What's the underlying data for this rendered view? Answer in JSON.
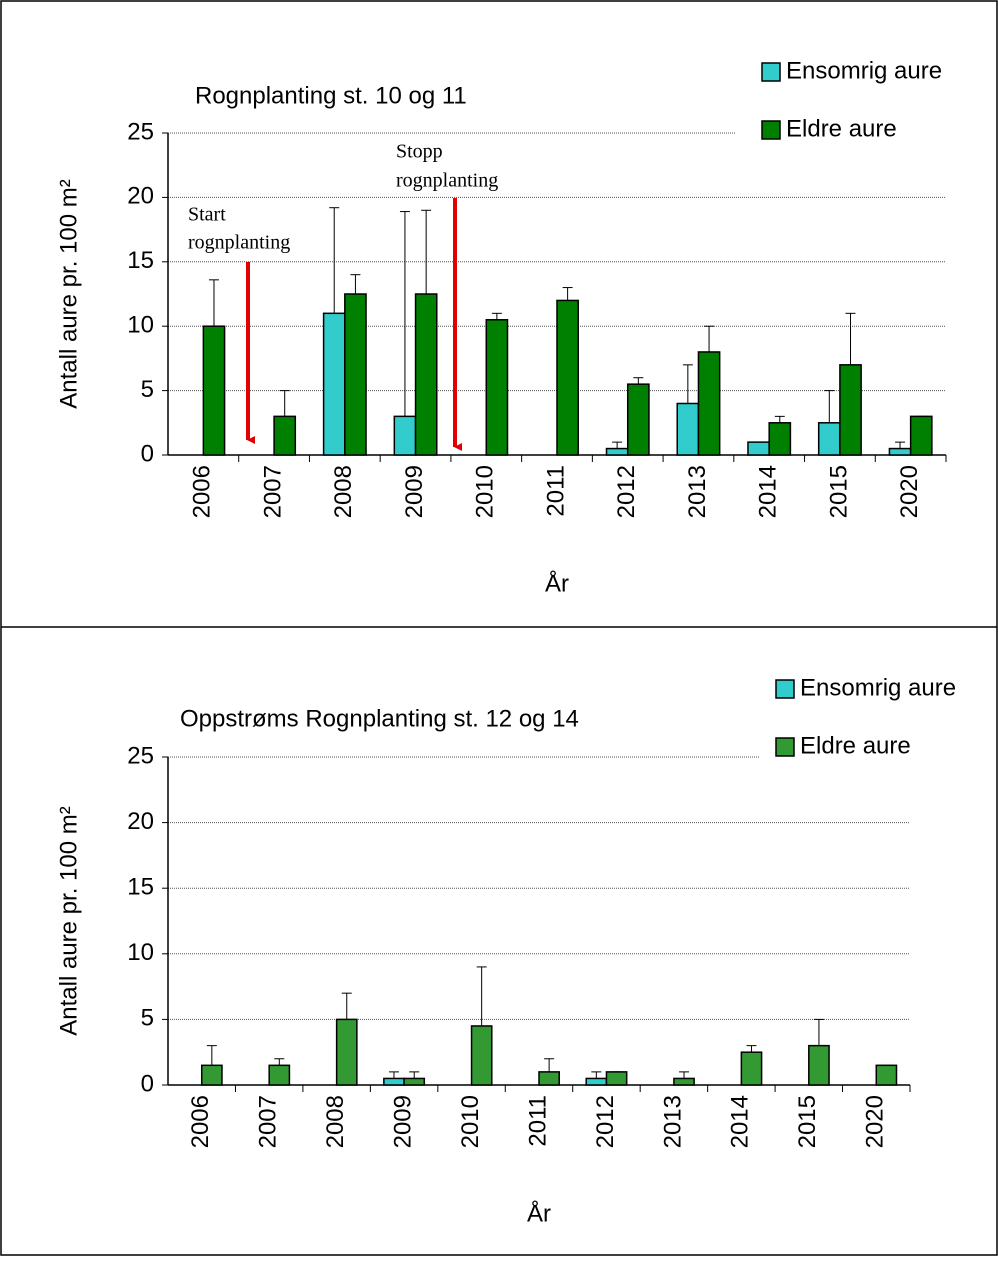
{
  "chart_data": [
    {
      "type": "bar",
      "title": "Rognplanting st. 10 og 11",
      "x_label": "År",
      "y_label": "Antall aure pr. 100 m²",
      "categories": [
        "2006",
        "2007",
        "2008",
        "2009",
        "2010",
        "2011",
        "2012",
        "2013",
        "2014",
        "2015",
        "2020"
      ],
      "series": [
        {
          "name": "Ensomrig aure",
          "color": "#33cccc",
          "values": [
            0,
            0,
            11,
            3,
            0,
            0,
            0.5,
            4,
            1,
            2.5,
            0.5
          ],
          "errors": [
            0,
            0,
            8.2,
            15.9,
            0,
            0,
            0.5,
            3,
            0,
            2.5,
            0.5
          ]
        },
        {
          "name": "Eldre aure",
          "color": "#008000",
          "values": [
            10,
            3,
            12.5,
            12.5,
            10.5,
            12,
            5.5,
            8,
            2.5,
            7,
            3
          ],
          "errors": [
            3.6,
            2,
            1.5,
            6.5,
            0.5,
            1,
            0.5,
            2,
            0.5,
            4,
            0
          ]
        }
      ],
      "annotations": [
        {
          "text": [
            "Start",
            "rognplanting"
          ]
        },
        {
          "text": [
            "Stopp",
            "rognplanting"
          ]
        }
      ],
      "ylim": [
        0,
        25
      ],
      "yticks": [
        0,
        5,
        10,
        15,
        20,
        25
      ],
      "grid": true,
      "legend": "top-right"
    },
    {
      "type": "bar",
      "title": "Oppstrøms Rognplanting st. 12 og 14",
      "x_label": "År",
      "y_label": "Antall aure pr. 100 m²",
      "categories": [
        "2006",
        "2007",
        "2008",
        "2009",
        "2010",
        "2011",
        "2012",
        "2013",
        "2014",
        "2015",
        "2020"
      ],
      "series": [
        {
          "name": "Ensomrig aure",
          "color": "#33cccc",
          "values": [
            0,
            0,
            0,
            0.5,
            0,
            0,
            0.5,
            0,
            0,
            0,
            0
          ],
          "errors": [
            0,
            0,
            0,
            0.5,
            0,
            0,
            0.5,
            0,
            0,
            0,
            0
          ]
        },
        {
          "name": "Eldre aure",
          "color": "#339933",
          "values": [
            1.5,
            1.5,
            5,
            0.5,
            4.5,
            1,
            1,
            0.5,
            2.5,
            3,
            1.5
          ],
          "errors": [
            1.5,
            0.5,
            2,
            0.5,
            4.5,
            1,
            0,
            0.5,
            0.5,
            2,
            0
          ]
        }
      ],
      "ylim": [
        0,
        25
      ],
      "yticks": [
        0,
        5,
        10,
        15,
        20,
        25
      ],
      "grid": true,
      "legend": "top-right"
    }
  ]
}
